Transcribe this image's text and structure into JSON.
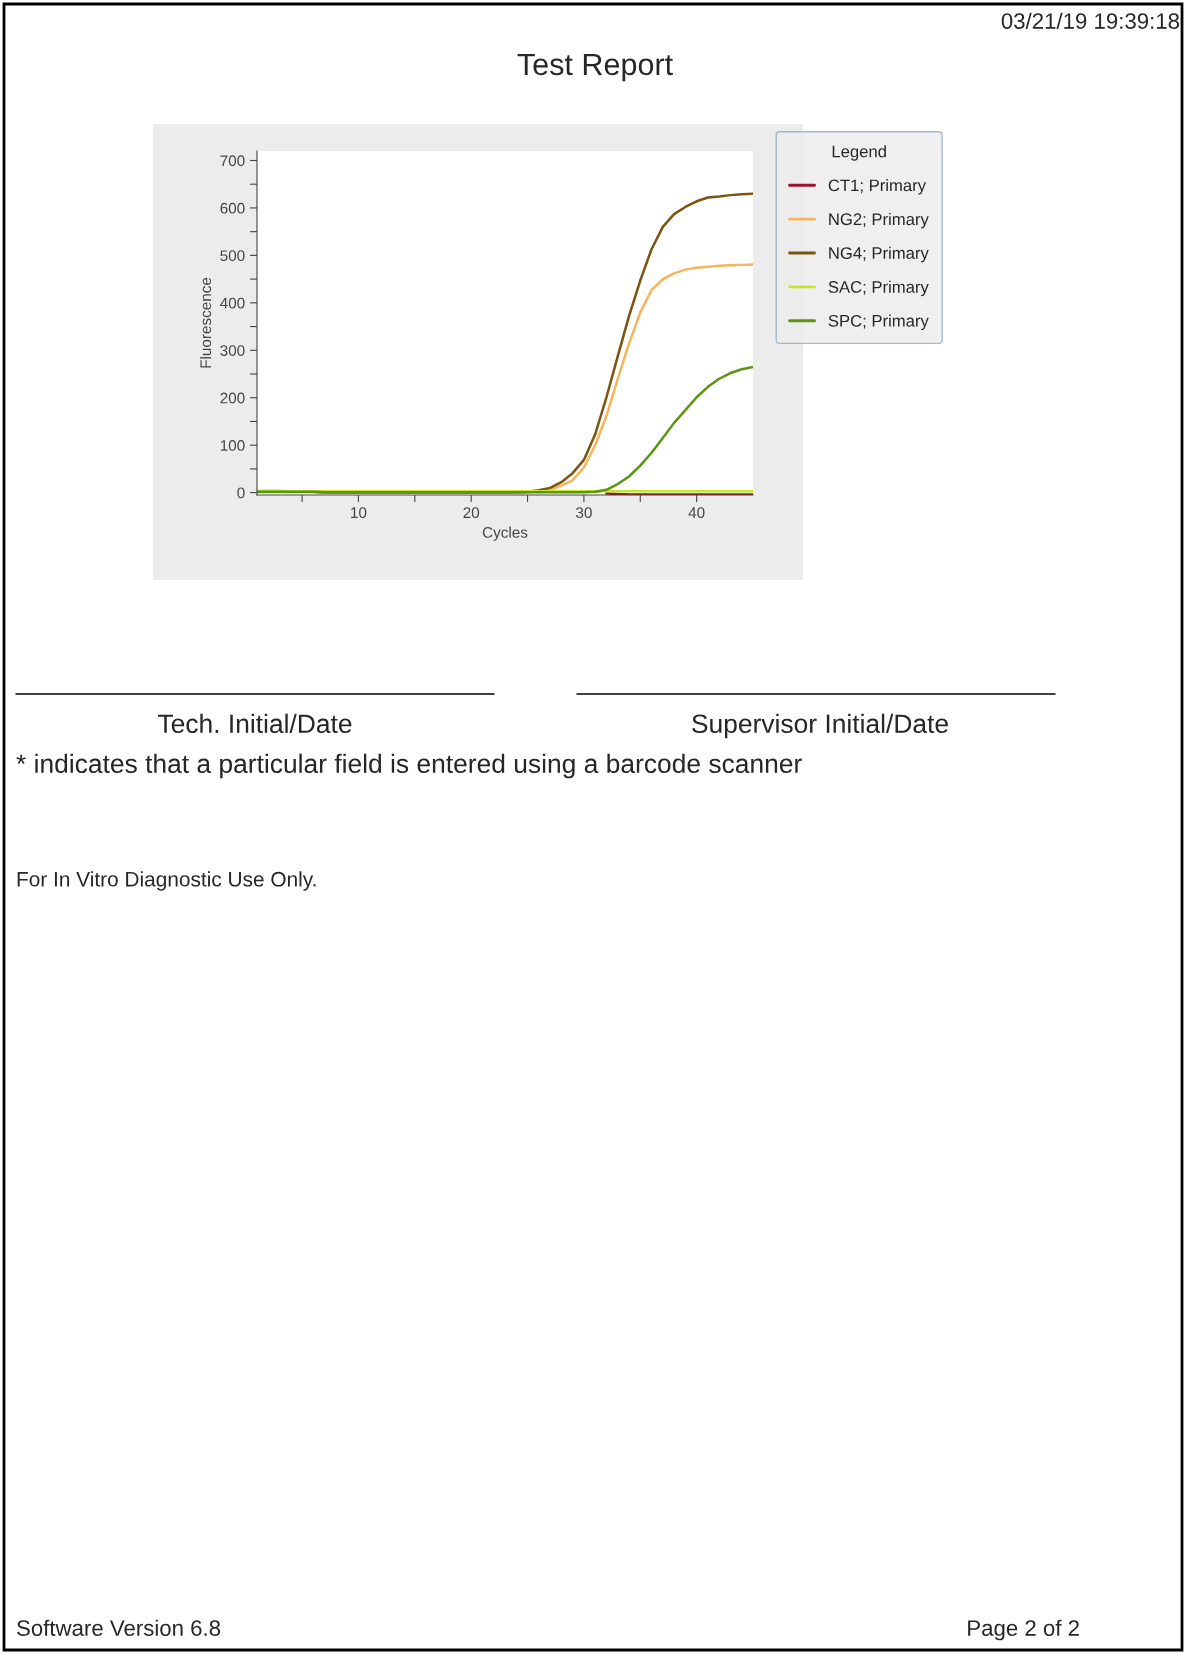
{
  "chart_data": {
    "type": "line",
    "title": "Test Report",
    "xlabel": "Cycles",
    "ylabel": "Fluorescence",
    "legend_title": "Legend",
    "x": [
      1,
      2,
      3,
      4,
      5,
      6,
      7,
      8,
      9,
      10,
      11,
      12,
      13,
      14,
      15,
      16,
      17,
      18,
      19,
      20,
      21,
      22,
      23,
      24,
      25,
      26,
      27,
      28,
      29,
      30,
      31,
      32,
      33,
      34,
      35,
      36,
      37,
      38,
      39,
      40,
      41,
      42,
      43,
      44,
      45
    ],
    "series": [
      {
        "name": "CT1; Primary",
        "color": "#a0102a",
        "values": [
          null,
          null,
          null,
          null,
          null,
          null,
          null,
          null,
          null,
          null,
          null,
          null,
          null,
          null,
          null,
          null,
          null,
          null,
          null,
          null,
          null,
          null,
          null,
          null,
          null,
          null,
          null,
          null,
          null,
          null,
          null,
          -2,
          -3,
          -4,
          -4,
          -4,
          -4,
          -4,
          -4,
          -4,
          -4,
          -4,
          -4,
          -4,
          -4
        ]
      },
      {
        "name": "NG2; Primary",
        "color": "#f7b55a",
        "values": [
          1,
          1,
          1,
          1,
          1,
          1,
          0,
          0,
          0,
          0,
          0,
          0,
          0,
          0,
          0,
          0,
          0,
          0,
          0,
          0,
          0,
          0,
          0,
          0,
          1,
          2,
          6,
          15,
          26,
          53,
          100,
          162,
          240,
          314,
          380,
          427,
          450,
          462,
          470,
          474,
          476,
          478,
          479,
          480,
          481
        ]
      },
      {
        "name": "NG4; Primary",
        "color": "#7a5410",
        "values": [
          3,
          3,
          3,
          2,
          2,
          2,
          1,
          1,
          1,
          1,
          1,
          1,
          1,
          1,
          1,
          1,
          1,
          1,
          1,
          1,
          1,
          1,
          1,
          1,
          2,
          5,
          10,
          22,
          41,
          69,
          123,
          201,
          287,
          372,
          447,
          513,
          560,
          587,
          602,
          614,
          622,
          624,
          627,
          629,
          630
        ]
      },
      {
        "name": "SAC; Primary",
        "color": "#c8e628",
        "values": [
          4,
          4,
          4,
          3,
          3,
          3,
          3,
          3,
          3,
          3,
          3,
          3,
          3,
          3,
          3,
          3,
          3,
          3,
          3,
          3,
          3,
          3,
          3,
          3,
          3,
          3,
          3,
          3,
          3,
          3,
          3,
          3,
          3,
          3,
          3,
          3,
          3,
          3,
          3,
          3,
          3,
          3,
          3,
          3,
          3
        ]
      },
      {
        "name": "SPC; Primary",
        "color": "#5a9410",
        "values": [
          2,
          2,
          2,
          2,
          2,
          2,
          1,
          1,
          1,
          1,
          1,
          1,
          1,
          1,
          1,
          1,
          1,
          1,
          1,
          1,
          1,
          1,
          1,
          1,
          1,
          1,
          1,
          1,
          1,
          1,
          2,
          6,
          18,
          34,
          57,
          84,
          115,
          147,
          174,
          201,
          223,
          240,
          252,
          260,
          265
        ]
      }
    ],
    "xlim": [
      1,
      45
    ],
    "ylim": [
      -5,
      720
    ],
    "xticks": [
      {
        "value": 5,
        "label": null
      },
      10,
      {
        "value": 15,
        "label": null
      },
      20,
      {
        "value": 25,
        "label": null
      },
      30,
      {
        "value": 35,
        "label": null
      },
      40
    ],
    "yticks": [
      0,
      {
        "value": 50,
        "label": null
      },
      100,
      {
        "value": 150,
        "label": null
      },
      200,
      {
        "value": 250,
        "label": null
      },
      300,
      {
        "value": 350,
        "label": null
      },
      400,
      {
        "value": 450,
        "label": null
      },
      500,
      {
        "value": 550,
        "label": null
      },
      600,
      {
        "value": 650,
        "label": null
      },
      700
    ],
    "grid": false,
    "legend": "right",
    "marker": "none",
    "line_style": "solid",
    "annotations": [
      "03/21/19 19:39:18",
      "Tech. Initial/Date",
      "Supervisor Initial/Date",
      "* indicates that a particular field is entered using a barcode scanner",
      "For In Vitro Diagnostic Use Only.",
      "Software Version 6.8",
      "Page 2 of 2"
    ]
  }
}
